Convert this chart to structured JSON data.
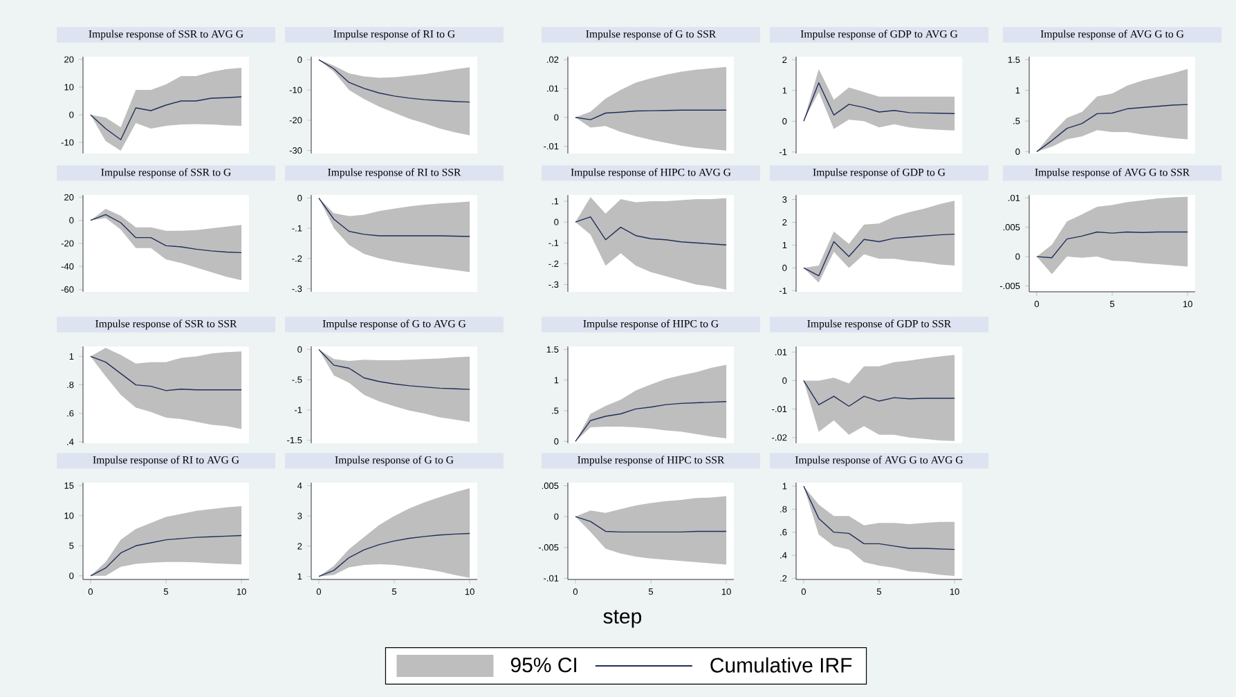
{
  "chart_data": [
    {
      "type": "line",
      "title": "Impulse response of SSR to AVG G",
      "x": [
        0,
        1,
        2,
        3,
        4,
        5,
        6,
        7,
        8,
        9,
        10
      ],
      "xlim": [
        -0.5,
        10.5
      ],
      "xticks": [
        0,
        5,
        10
      ],
      "ylim": [
        -14,
        21
      ],
      "yticks": [
        -10,
        0,
        10,
        20
      ],
      "tick_labels": "y",
      "series": [
        {
          "color": "#1f2d5a",
          "values": [
            0,
            -5,
            -9,
            2.5,
            1.5,
            3.5,
            5,
            5,
            6,
            6.2,
            6.5
          ],
          "lower": [
            0,
            -9.5,
            -13,
            -3,
            -5,
            -4,
            -3.5,
            -3.4,
            -3.5,
            -3.8,
            -4
          ],
          "upper": [
            0,
            -1,
            -4.5,
            9,
            9,
            11,
            14,
            14,
            15.5,
            16.5,
            17
          ]
        }
      ]
    },
    {
      "type": "line",
      "title": "Impulse response of RI to G",
      "x": [
        0,
        1,
        2,
        3,
        4,
        5,
        6,
        7,
        8,
        9,
        10
      ],
      "xlim": [
        -0.5,
        10.5
      ],
      "xticks": [
        0,
        5,
        10
      ],
      "ylim": [
        -31,
        1
      ],
      "yticks": [
        -30,
        -20,
        -10,
        0
      ],
      "tick_labels": "y",
      "series": [
        {
          "color": "#1f2d5a",
          "values": [
            0,
            -3,
            -7.5,
            -9.5,
            -11,
            -12,
            -12.7,
            -13.2,
            -13.5,
            -13.8,
            -14
          ],
          "lower": [
            0,
            -4,
            -10,
            -13,
            -15.5,
            -17.5,
            -19.5,
            -21,
            -22.7,
            -24,
            -25
          ],
          "upper": [
            0,
            -2,
            -4.5,
            -5.5,
            -6,
            -5.8,
            -5.3,
            -4.8,
            -4,
            -3.2,
            -2.5
          ]
        }
      ]
    },
    {
      "type": "line",
      "title": "Impulse response of G to SSR",
      "x": [
        0,
        1,
        2,
        3,
        4,
        5,
        6,
        7,
        8,
        9,
        10
      ],
      "xlim": [
        -0.5,
        10.5
      ],
      "xticks": [
        0,
        5,
        10
      ],
      "ylim": [
        -0.0125,
        0.021
      ],
      "yticks": [
        {
          "value": -0.01,
          "label": "-.01"
        },
        0,
        {
          "value": 0.01,
          "label": ".01"
        },
        {
          "value": 0.02,
          "label": ".02"
        }
      ],
      "tick_labels": "y",
      "series": [
        {
          "color": "#1f2d5a",
          "values": [
            0,
            -0.0008,
            0.0015,
            0.0018,
            0.0022,
            0.0023,
            0.0024,
            0.0025,
            0.0025,
            0.0025,
            0.0025
          ],
          "lower": [
            0,
            -0.0035,
            -0.003,
            -0.005,
            -0.0065,
            -0.0078,
            -0.0088,
            -0.0098,
            -0.0105,
            -0.011,
            -0.0115
          ],
          "upper": [
            0,
            0.002,
            0.0065,
            0.0095,
            0.012,
            0.0135,
            0.0148,
            0.0158,
            0.0165,
            0.017,
            0.0175
          ]
        }
      ]
    },
    {
      "type": "line",
      "title": "Impulse response of GDP to AVG G",
      "x": [
        0,
        1,
        2,
        3,
        4,
        5,
        6,
        7,
        8,
        9,
        10
      ],
      "xlim": [
        -0.5,
        10.5
      ],
      "xticks": [
        0,
        5,
        10
      ],
      "ylim": [
        -1.05,
        2.1
      ],
      "yticks": [
        -1,
        0,
        1,
        2
      ],
      "tick_labels": "y",
      "series": [
        {
          "color": "#1f2d5a",
          "values": [
            0,
            1.25,
            0.2,
            0.55,
            0.45,
            0.3,
            0.35,
            0.28,
            0.27,
            0.26,
            0.25
          ],
          "lower": [
            0,
            0.95,
            -0.25,
            0.05,
            0,
            -0.2,
            -0.1,
            -0.2,
            -0.25,
            -0.28,
            -0.3
          ],
          "upper": [
            0,
            1.7,
            0.7,
            1.1,
            0.95,
            0.8,
            0.8,
            0.8,
            0.8,
            0.8,
            0.8
          ]
        }
      ]
    },
    {
      "type": "line",
      "title": "Impulse response of AVG G to G",
      "x": [
        0,
        1,
        2,
        3,
        4,
        5,
        6,
        7,
        8,
        9,
        10
      ],
      "xlim": [
        -0.5,
        10.5
      ],
      "xticks": [
        0,
        5,
        10
      ],
      "ylim": [
        -0.03,
        1.55
      ],
      "yticks": [
        0,
        {
          "value": 0.5,
          "label": ".5"
        },
        1,
        1.5
      ],
      "tick_labels": "y",
      "series": [
        {
          "color": "#1f2d5a",
          "values": [
            0,
            0.18,
            0.38,
            0.46,
            0.62,
            0.63,
            0.7,
            0.72,
            0.74,
            0.76,
            0.77
          ],
          "lower": [
            0,
            0.08,
            0.2,
            0.25,
            0.35,
            0.32,
            0.32,
            0.28,
            0.25,
            0.22,
            0.2
          ],
          "upper": [
            0,
            0.3,
            0.55,
            0.65,
            0.9,
            0.95,
            1.08,
            1.16,
            1.22,
            1.28,
            1.35
          ]
        }
      ]
    },
    {
      "type": "line",
      "title": "Impulse response of SSR to G",
      "x": [
        0,
        1,
        2,
        3,
        4,
        5,
        6,
        7,
        8,
        9,
        10
      ],
      "xlim": [
        -0.5,
        10.5
      ],
      "xticks": [
        0,
        5,
        10
      ],
      "ylim": [
        -62,
        22
      ],
      "yticks": [
        -60,
        -40,
        -20,
        0,
        20
      ],
      "tick_labels": "y",
      "series": [
        {
          "color": "#1f2d5a",
          "values": [
            0,
            5,
            -2,
            -15,
            -15,
            -22,
            -23,
            -25,
            -26.5,
            -27.5,
            -28
          ],
          "lower": [
            0,
            2,
            -8,
            -24,
            -24,
            -34,
            -37,
            -41,
            -45,
            -49,
            -52
          ],
          "upper": [
            0,
            10,
            4,
            -6,
            -6,
            -9,
            -9,
            -8.5,
            -7,
            -5.5,
            -4
          ]
        }
      ]
    },
    {
      "type": "line",
      "title": "Impulse response of RI to SSR",
      "x": [
        0,
        1,
        2,
        3,
        4,
        5,
        6,
        7,
        8,
        9,
        10
      ],
      "xlim": [
        -0.5,
        10.5
      ],
      "xticks": [
        0,
        5,
        10
      ],
      "ylim": [
        -0.31,
        0.01
      ],
      "yticks": [
        {
          "value": -0.3,
          "label": "-.3"
        },
        {
          "value": -0.2,
          "label": "-.2"
        },
        {
          "value": -0.1,
          "label": "-.1"
        },
        0
      ],
      "tick_labels": "y",
      "series": [
        {
          "color": "#1f2d5a",
          "values": [
            0,
            -0.07,
            -0.11,
            -0.12,
            -0.125,
            -0.125,
            -0.125,
            -0.125,
            -0.125,
            -0.126,
            -0.127
          ],
          "lower": [
            0,
            -0.1,
            -0.155,
            -0.185,
            -0.2,
            -0.21,
            -0.218,
            -0.225,
            -0.232,
            -0.238,
            -0.245
          ],
          "upper": [
            0,
            -0.05,
            -0.06,
            -0.055,
            -0.043,
            -0.035,
            -0.028,
            -0.022,
            -0.018,
            -0.015,
            -0.012
          ]
        }
      ]
    },
    {
      "type": "line",
      "title": "Impulse response of HIPC to AVG G",
      "x": [
        0,
        1,
        2,
        3,
        4,
        5,
        6,
        7,
        8,
        9,
        10
      ],
      "xlim": [
        -0.5,
        10.5
      ],
      "xticks": [
        0,
        5,
        10
      ],
      "ylim": [
        -0.335,
        0.13
      ],
      "yticks": [
        {
          "value": -0.3,
          "label": "-.3"
        },
        {
          "value": -0.2,
          "label": "-.2"
        },
        {
          "value": -0.1,
          "label": "-.1"
        },
        0,
        {
          "value": 0.1,
          "label": ".1"
        }
      ],
      "tick_labels": "y",
      "series": [
        {
          "color": "#1f2d5a",
          "values": [
            0,
            0.025,
            -0.085,
            -0.025,
            -0.065,
            -0.08,
            -0.085,
            -0.095,
            -0.1,
            -0.105,
            -0.11
          ],
          "lower": [
            0,
            -0.06,
            -0.21,
            -0.15,
            -0.21,
            -0.24,
            -0.26,
            -0.28,
            -0.3,
            -0.31,
            -0.325
          ],
          "upper": [
            0,
            0.12,
            0.04,
            0.11,
            0.095,
            0.1,
            0.1,
            0.105,
            0.11,
            0.11,
            0.115
          ]
        }
      ]
    },
    {
      "type": "line",
      "title": "Impulse response of GDP to G",
      "x": [
        0,
        1,
        2,
        3,
        4,
        5,
        6,
        7,
        8,
        9,
        10
      ],
      "xlim": [
        -0.5,
        10.5
      ],
      "xticks": [
        0,
        5,
        10
      ],
      "ylim": [
        -1.05,
        3.2
      ],
      "yticks": [
        -1,
        0,
        1,
        2,
        3
      ],
      "tick_labels": "y",
      "series": [
        {
          "color": "#1f2d5a",
          "values": [
            0,
            -0.35,
            1.15,
            0.5,
            1.25,
            1.15,
            1.3,
            1.35,
            1.4,
            1.45,
            1.48
          ],
          "lower": [
            0,
            -0.65,
            0.7,
            0,
            0.6,
            0.4,
            0.4,
            0.3,
            0.25,
            0.15,
            0.1
          ],
          "upper": [
            0,
            0.1,
            1.6,
            1.05,
            1.9,
            1.95,
            2.25,
            2.45,
            2.6,
            2.8,
            2.95
          ]
        }
      ]
    },
    {
      "type": "line",
      "title": "Impulse response of AVG G to SSR",
      "x": [
        0,
        1,
        2,
        3,
        4,
        5,
        6,
        7,
        8,
        9,
        10
      ],
      "xlim": [
        -0.5,
        10.5
      ],
      "xticks": [
        0,
        5,
        10
      ],
      "ylim": [
        -0.006,
        0.0105
      ],
      "yticks": [
        {
          "value": -0.005,
          "label": "-.005"
        },
        0,
        {
          "value": 0.005,
          "label": ".005"
        },
        {
          "value": 0.01,
          "label": ".01"
        }
      ],
      "series": [
        {
          "color": "#1f2d5a",
          "values": [
            0,
            -0.0002,
            0.003,
            0.0035,
            0.0042,
            0.004,
            0.0042,
            0.0041,
            0.0042,
            0.0042,
            0.0042
          ],
          "lower": [
            0,
            -0.003,
            0,
            -0.0002,
            0,
            -0.0007,
            -0.0008,
            -0.0011,
            -0.0013,
            -0.0015,
            -0.0017
          ],
          "upper": [
            0,
            0.002,
            0.006,
            0.0072,
            0.0085,
            0.0088,
            0.0093,
            0.0096,
            0.0099,
            0.0101,
            0.0102
          ]
        }
      ]
    },
    {
      "type": "line",
      "title": "Impulse response of SSR to SSR",
      "x": [
        0,
        1,
        2,
        3,
        4,
        5,
        6,
        7,
        8,
        9,
        10
      ],
      "xlim": [
        -0.5,
        10.5
      ],
      "xticks": [
        0,
        5,
        10
      ],
      "ylim": [
        0.39,
        1.07
      ],
      "yticks": [
        {
          "value": 0.4,
          "label": ".4"
        },
        {
          "value": 0.6,
          "label": ".6"
        },
        {
          "value": 0.8,
          "label": ".8"
        },
        1
      ],
      "tick_labels": "y",
      "series": [
        {
          "color": "#1f2d5a",
          "values": [
            1,
            0.96,
            0.88,
            0.8,
            0.79,
            0.76,
            0.77,
            0.765,
            0.765,
            0.765,
            0.765
          ],
          "lower": [
            1,
            0.86,
            0.73,
            0.64,
            0.61,
            0.57,
            0.56,
            0.54,
            0.52,
            0.51,
            0.49
          ],
          "upper": [
            1,
            1.06,
            1.01,
            0.95,
            0.96,
            0.96,
            0.99,
            1,
            1.02,
            1.03,
            1.035
          ]
        }
      ]
    },
    {
      "type": "line",
      "title": "Impulse response of G to AVG G",
      "x": [
        0,
        1,
        2,
        3,
        4,
        5,
        6,
        7,
        8,
        9,
        10
      ],
      "xlim": [
        -0.5,
        10.5
      ],
      "xticks": [
        0,
        5,
        10
      ],
      "ylim": [
        -1.55,
        0.05
      ],
      "yticks": [
        -1.5,
        -1,
        {
          "value": -0.5,
          "label": "-.5"
        },
        0
      ],
      "tick_labels": "y",
      "series": [
        {
          "color": "#1f2d5a",
          "values": [
            0,
            -0.26,
            -0.31,
            -0.47,
            -0.53,
            -0.57,
            -0.6,
            -0.62,
            -0.64,
            -0.65,
            -0.66
          ],
          "lower": [
            0,
            -0.43,
            -0.55,
            -0.75,
            -0.86,
            -0.94,
            -1.01,
            -1.06,
            -1.12,
            -1.16,
            -1.2
          ],
          "upper": [
            0,
            -0.16,
            -0.19,
            -0.17,
            -0.18,
            -0.18,
            -0.17,
            -0.16,
            -0.15,
            -0.13,
            -0.12
          ]
        }
      ]
    },
    {
      "type": "line",
      "title": "Impulse response of HIPC to G",
      "x": [
        0,
        1,
        2,
        3,
        4,
        5,
        6,
        7,
        8,
        9,
        10
      ],
      "xlim": [
        -0.5,
        10.5
      ],
      "xticks": [
        0,
        5,
        10
      ],
      "ylim": [
        -0.03,
        1.55
      ],
      "yticks": [
        0,
        {
          "value": 0.5,
          "label": ".5"
        },
        1,
        1.5
      ],
      "tick_labels": "y",
      "series": [
        {
          "color": "#1f2d5a",
          "values": [
            0,
            0.34,
            0.41,
            0.45,
            0.53,
            0.56,
            0.6,
            0.62,
            0.63,
            0.64,
            0.65
          ],
          "lower": [
            0,
            0.23,
            0.24,
            0.24,
            0.23,
            0.21,
            0.18,
            0.16,
            0.12,
            0.08,
            0.05
          ],
          "upper": [
            0,
            0.45,
            0.58,
            0.68,
            0.83,
            0.93,
            1.02,
            1.08,
            1.13,
            1.2,
            1.25
          ]
        }
      ]
    },
    {
      "type": "line",
      "title": "Impulse response of GDP to SSR",
      "x": [
        0,
        1,
        2,
        3,
        4,
        5,
        6,
        7,
        8,
        9,
        10
      ],
      "xlim": [
        -0.5,
        10.5
      ],
      "xticks": [
        0,
        5,
        10
      ],
      "ylim": [
        -0.022,
        0.012
      ],
      "yticks": [
        {
          "value": -0.02,
          "label": "-.02"
        },
        {
          "value": -0.01,
          "label": "-.01"
        },
        0,
        {
          "value": 0.01,
          "label": ".01"
        }
      ],
      "tick_labels": "y",
      "series": [
        {
          "color": "#1f2d5a",
          "values": [
            0,
            -0.0085,
            -0.0055,
            -0.009,
            -0.0055,
            -0.0072,
            -0.006,
            -0.0064,
            -0.0062,
            -0.0062,
            -0.0062
          ],
          "lower": [
            0,
            -0.018,
            -0.014,
            -0.019,
            -0.016,
            -0.019,
            -0.019,
            -0.02,
            -0.0205,
            -0.021,
            -0.0212
          ],
          "upper": [
            0,
            0,
            0.001,
            -0.001,
            0.005,
            0.005,
            0.0065,
            0.007,
            0.0078,
            0.0085,
            0.009
          ]
        }
      ]
    },
    {
      "type": "line",
      "title": "Impulse response of RI to AVG G",
      "x": [
        0,
        1,
        2,
        3,
        4,
        5,
        6,
        7,
        8,
        9,
        10
      ],
      "xlim": [
        -0.5,
        10.5
      ],
      "xticks": [
        0,
        5,
        10
      ],
      "ylim": [
        -0.6,
        15.5
      ],
      "yticks": [
        0,
        5,
        10,
        15
      ],
      "series": [
        {
          "color": "#1f2d5a",
          "values": [
            0,
            1.3,
            3.8,
            5,
            5.5,
            6,
            6.2,
            6.4,
            6.5,
            6.6,
            6.7
          ],
          "lower": [
            0,
            0,
            1.5,
            2,
            2.2,
            2.3,
            2.3,
            2.25,
            2.1,
            2,
            1.9
          ],
          "upper": [
            0,
            2.3,
            6,
            7.8,
            8.8,
            9.8,
            10.3,
            10.8,
            11.1,
            11.4,
            11.6
          ]
        }
      ]
    },
    {
      "type": "line",
      "title": "Impulse response of G to G",
      "x": [
        0,
        1,
        2,
        3,
        4,
        5,
        6,
        7,
        8,
        9,
        10
      ],
      "xlim": [
        -0.5,
        10.5
      ],
      "xticks": [
        0,
        5,
        10
      ],
      "ylim": [
        0.9,
        4.1
      ],
      "yticks": [
        1,
        2,
        3,
        4
      ],
      "series": [
        {
          "color": "#1f2d5a",
          "values": [
            1,
            1.2,
            1.62,
            1.88,
            2.05,
            2.17,
            2.26,
            2.32,
            2.37,
            2.4,
            2.42
          ],
          "lower": [
            1,
            1.05,
            1.3,
            1.38,
            1.4,
            1.38,
            1.32,
            1.25,
            1.16,
            1.05,
            0.95
          ],
          "upper": [
            1,
            1.35,
            1.9,
            2.3,
            2.7,
            3,
            3.25,
            3.45,
            3.62,
            3.78,
            3.92
          ]
        }
      ]
    },
    {
      "type": "line",
      "title": "Impulse response of HIPC to SSR",
      "xlabel": "step",
      "x": [
        0,
        1,
        2,
        3,
        4,
        5,
        6,
        7,
        8,
        9,
        10
      ],
      "xlim": [
        -0.5,
        10.5
      ],
      "xticks": [
        0,
        5,
        10
      ],
      "ylim": [
        -0.0102,
        0.0055
      ],
      "yticks": [
        {
          "value": -0.01,
          "label": "-.01"
        },
        {
          "value": -0.005,
          "label": "-.005"
        },
        0,
        {
          "value": 0.005,
          "label": ".005"
        }
      ],
      "series": [
        {
          "color": "#1f2d5a",
          "values": [
            0,
            -0.0008,
            -0.0024,
            -0.0025,
            -0.0025,
            -0.0025,
            -0.0025,
            -0.0025,
            -0.0024,
            -0.0024,
            -0.0024
          ],
          "lower": [
            0,
            -0.0025,
            -0.0052,
            -0.006,
            -0.0065,
            -0.0068,
            -0.007,
            -0.0072,
            -0.0074,
            -0.0076,
            -0.0078
          ],
          "upper": [
            0,
            0.001,
            0.0006,
            0.0012,
            0.0018,
            0.0022,
            0.0025,
            0.0027,
            0.003,
            0.0031,
            0.0033
          ]
        }
      ]
    },
    {
      "type": "line",
      "title": "Impulse response of AVG G to AVG G",
      "legend": "bottom",
      "annotations": [
        "95% CI"
      ],
      "x": [
        0,
        1,
        2,
        3,
        4,
        5,
        6,
        7,
        8,
        9,
        10
      ],
      "xlim": [
        -0.5,
        10.5
      ],
      "xticks": [
        0,
        5,
        10
      ],
      "ylim": [
        0.19,
        1.03
      ],
      "yticks": [
        {
          "value": 0.2,
          "label": ".2"
        },
        {
          "value": 0.4,
          "label": ".4"
        },
        {
          "value": 0.6,
          "label": ".6"
        },
        {
          "value": 0.8,
          "label": ".8"
        },
        1
      ],
      "series": [
        {
          "name": "Cumulative IRF",
          "color": "#1f2d5a",
          "values": [
            1,
            0.72,
            0.6,
            0.59,
            0.5,
            0.5,
            0.48,
            0.46,
            0.46,
            0.455,
            0.45
          ],
          "lower": [
            1,
            0.58,
            0.48,
            0.45,
            0.34,
            0.31,
            0.29,
            0.26,
            0.25,
            0.23,
            0.22
          ],
          "upper": [
            1,
            0.84,
            0.74,
            0.74,
            0.66,
            0.68,
            0.68,
            0.67,
            0.68,
            0.69,
            0.69
          ]
        }
      ]
    }
  ]
}
